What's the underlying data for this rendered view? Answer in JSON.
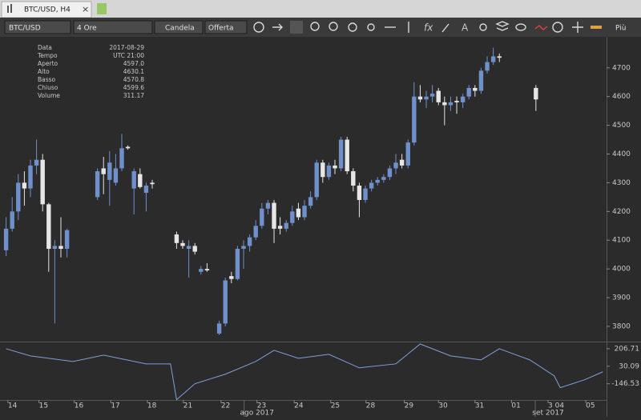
{
  "tab": {
    "title": "BTC/USD, H4"
  },
  "toolbar": {
    "symbol": "BTC/USD",
    "period": "4 Ore",
    "chart_type": "Candela",
    "price": "Offerta",
    "more": "Più"
  },
  "info_panel": {
    "labels": [
      "Data",
      "Tempo",
      "Aperto",
      "Alto",
      "Basso",
      "Chiuso",
      "Volume"
    ],
    "values": [
      "2017-08-29",
      "UTC 21:00",
      "4597.0",
      "4630.1",
      "4570.8",
      "4599.6",
      "311.17"
    ]
  },
  "chart_data": [
    {
      "type": "candlestick",
      "up_color": "#7090cc",
      "down_color": "#e6e6e6",
      "x": [
        0,
        1,
        2,
        3,
        4,
        5,
        6,
        7,
        8,
        9,
        10,
        15,
        16,
        17,
        18,
        19,
        20,
        21,
        22,
        23,
        24,
        28,
        29,
        30,
        31,
        32,
        33,
        35,
        36,
        37,
        38,
        39,
        40,
        41,
        42,
        43,
        44,
        45,
        46,
        47,
        48,
        49,
        50,
        51,
        52,
        53,
        54,
        55,
        56,
        57,
        58,
        59,
        60,
        61,
        62,
        63,
        64,
        65,
        66,
        67,
        68,
        69,
        70,
        71,
        72,
        73,
        74,
        75,
        76,
        77,
        78,
        79,
        80,
        81,
        87
      ],
      "open": [
        4065,
        4140,
        4200,
        4300,
        4280,
        4360,
        4380,
        4225,
        4070,
        4080,
        4070,
        4250,
        4350,
        4310,
        4300,
        4350,
        4425,
        4280,
        4330,
        4265,
        4300,
        4120,
        4090,
        4070,
        4080,
        3990,
        4000,
        3775,
        3810,
        3975,
        3965,
        4070,
        4080,
        4110,
        4150,
        4210,
        4230,
        4150,
        4140,
        4160,
        4210,
        4180,
        4220,
        4250,
        4370,
        4320,
        4360,
        4350,
        4450,
        4340,
        4290,
        4240,
        4280,
        4300,
        4310,
        4320,
        4350,
        4380,
        4360,
        4440,
        4600,
        4590,
        4600,
        4620,
        4580,
        4570,
        4585,
        4580,
        4600,
        4630,
        4620,
        4690,
        4720,
        4740,
        4630
      ],
      "high": [
        4180,
        4250,
        4330,
        4340,
        4380,
        4450,
        4400,
        4230,
        4100,
        4180,
        4140,
        4350,
        4390,
        4410,
        4400,
        4470,
        4430,
        4350,
        4350,
        4300,
        4310,
        4130,
        4100,
        4100,
        4090,
        4010,
        4020,
        3820,
        3970,
        3990,
        4080,
        4100,
        4120,
        4170,
        4230,
        4240,
        4240,
        4180,
        4170,
        4220,
        4230,
        4240,
        4270,
        4380,
        4380,
        4370,
        4380,
        4460,
        4460,
        4350,
        4300,
        4290,
        4310,
        4320,
        4330,
        4360,
        4400,
        4400,
        4450,
        4650,
        4640,
        4620,
        4640,
        4630,
        4600,
        4600,
        4600,
        4610,
        4640,
        4640,
        4700,
        4740,
        4770,
        4750,
        4640
      ],
      "low": [
        4045,
        4130,
        4170,
        4220,
        4250,
        4330,
        4200,
        3990,
        3810,
        4040,
        4040,
        4240,
        4260,
        4220,
        4290,
        4340,
        4415,
        4190,
        4280,
        4200,
        4280,
        4070,
        4070,
        3970,
        4050,
        3980,
        3990,
        3770,
        3800,
        3950,
        3960,
        4000,
        4060,
        4100,
        4140,
        4190,
        4090,
        4120,
        4130,
        4150,
        4170,
        4170,
        4210,
        4240,
        4300,
        4310,
        4330,
        4340,
        4330,
        4270,
        4180,
        4230,
        4270,
        4290,
        4300,
        4310,
        4330,
        4350,
        4350,
        4430,
        4580,
        4560,
        4580,
        4570,
        4500,
        4550,
        4540,
        4560,
        4590,
        4600,
        4610,
        4680,
        4710,
        4720,
        4550
      ],
      "close": [
        4140,
        4200,
        4300,
        4280,
        4360,
        4380,
        4225,
        4070,
        4080,
        4070,
        4135,
        4340,
        4330,
        4370,
        4350,
        4420,
        4420,
        4340,
        4285,
        4290,
        4295,
        4090,
        4080,
        4080,
        4060,
        4000,
        3995,
        3810,
        3960,
        3965,
        4070,
        4080,
        4110,
        4150,
        4210,
        4230,
        4140,
        4140,
        4160,
        4200,
        4180,
        4220,
        4250,
        4370,
        4320,
        4360,
        4350,
        4450,
        4340,
        4290,
        4240,
        4280,
        4300,
        4310,
        4320,
        4350,
        4370,
        4360,
        4440,
        4600,
        4590,
        4600,
        4610,
        4580,
        4570,
        4580,
        4580,
        4600,
        4630,
        4620,
        4690,
        4720,
        4740,
        4735,
        4590
      ],
      "xlim": [
        -1,
        98.6
      ],
      "ylim": [
        3747,
        4808
      ],
      "yticks": [
        3800,
        3900,
        4000,
        4100,
        4200,
        4300,
        4400,
        4500,
        4600,
        4700
      ]
    },
    {
      "type": "line",
      "color": "#7f9fd9",
      "x": [
        0,
        4,
        11,
        16,
        23,
        27,
        28,
        31,
        36,
        41,
        44,
        48,
        53,
        58,
        64,
        68,
        73,
        78,
        81,
        86,
        90,
        91,
        95,
        98
      ],
      "values": [
        206,
        134,
        78,
        142,
        54,
        54,
        -307,
        -146,
        -50,
        78,
        190,
        110,
        150,
        14,
        54,
        254,
        134,
        94,
        206,
        94,
        -66,
        -186,
        -106,
        -26
      ],
      "xlim": [
        -1,
        98.6
      ],
      "ylim": [
        -310,
        270
      ],
      "yticks": [
        206.71,
        30.09,
        -146.53
      ],
      "xticks": [
        {
          "value": 0.3,
          "label": "14"
        },
        {
          "value": 5.4,
          "label": "15"
        },
        {
          "value": 11.2,
          "label": "16"
        },
        {
          "value": 17.2,
          "label": "17"
        },
        {
          "value": 23.2,
          "label": "18"
        },
        {
          "value": 29.1,
          "label": "21"
        },
        {
          "value": 35.3,
          "label": "22"
        },
        {
          "value": 41.2,
          "label": "23"
        },
        {
          "value": 47.3,
          "label": "24"
        },
        {
          "value": 53.3,
          "label": "25"
        },
        {
          "value": 59.1,
          "label": "28"
        },
        {
          "value": 65.4,
          "label": "29"
        },
        {
          "value": 71,
          "label": "30"
        },
        {
          "value": 77,
          "label": "31"
        },
        {
          "value": 83,
          "label": "01"
        },
        {
          "value": 89,
          "label": "3 04"
        },
        {
          "value": 95.2,
          "label": "05"
        }
      ],
      "x_group_labels": [
        {
          "value": 41.2,
          "label": "ago 2017"
        },
        {
          "value": 89,
          "label": "set 2017"
        }
      ]
    }
  ]
}
